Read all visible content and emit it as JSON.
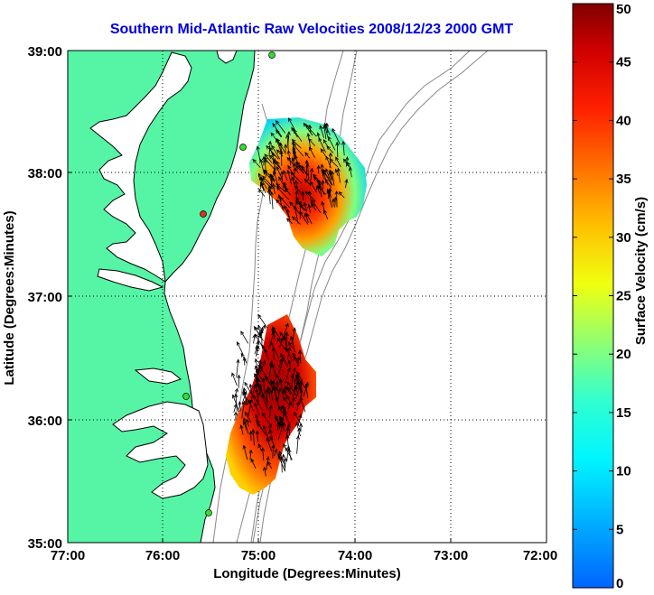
{
  "title": "Southern Mid-Atlantic Raw Velocities 2008/12/23 2000 GMT",
  "x_axis": {
    "label": "Longitude (Degrees:Minutes)",
    "ticks": [
      "77:00",
      "76:00",
      "75:00",
      "74:00",
      "73:00",
      "72:00"
    ]
  },
  "y_axis": {
    "label": "Latitude (Degrees:Minutes)",
    "ticks": [
      "39:00",
      "38:00",
      "37:00",
      "36:00",
      "35:00"
    ]
  },
  "colorbar": {
    "label": "Surface Velocity (cm/s)",
    "ticks": [
      "50",
      "45",
      "40",
      "35",
      "30",
      "25",
      "20",
      "15",
      "10",
      "5",
      "0"
    ],
    "min": 0,
    "max": 50
  },
  "colors": {
    "land": "#55f5a5",
    "title": "#0000e0",
    "station": "#33dd33",
    "station_alt": "#e03020"
  }
}
